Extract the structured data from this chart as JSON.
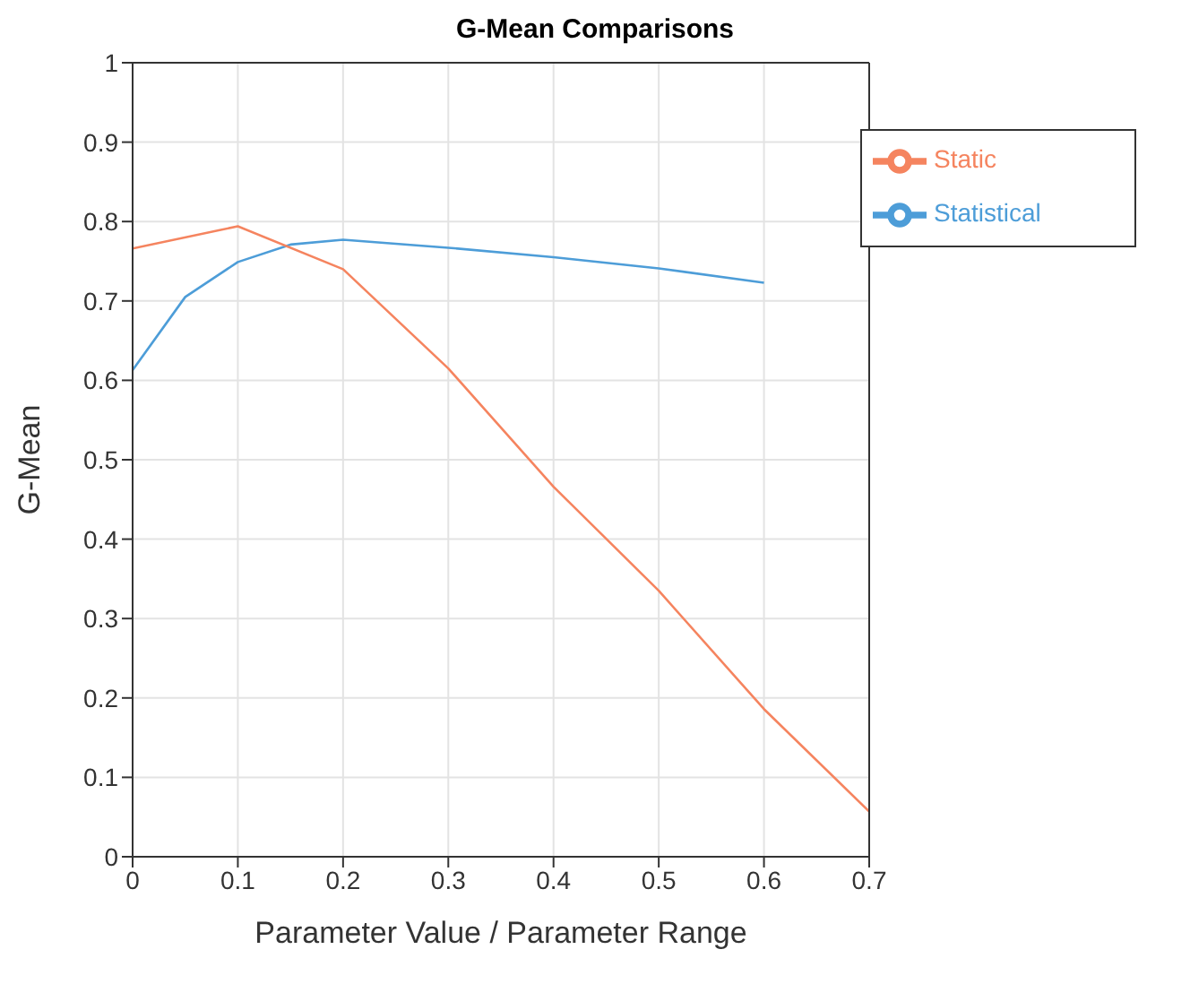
{
  "chart_data": {
    "type": "line",
    "title": "G-Mean Comparisons",
    "xlabel": "Parameter Value / Parameter Range",
    "ylabel": "G-Mean",
    "xlim": [
      0,
      0.7
    ],
    "xticks": [
      0,
      0.1,
      0.2,
      0.3,
      0.4,
      0.5,
      0.6,
      0.7
    ],
    "ylim": [
      0,
      1
    ],
    "yticks": [
      0,
      0.1,
      0.2,
      0.3,
      0.4,
      0.5,
      0.6,
      0.7,
      0.8,
      0.9,
      1
    ],
    "grid": true,
    "legend": "top right",
    "marker": "none",
    "line_style": "solid",
    "series": [
      {
        "name": "Statistical",
        "color": "#4d9dd8",
        "x": [
          0,
          0.05,
          0.1,
          0.15,
          0.2,
          0.3,
          0.4,
          0.5,
          0.6
        ],
        "values": [
          0.613,
          0.705,
          0.749,
          0.771,
          0.777,
          0.767,
          0.755,
          0.741,
          0.723
        ]
      },
      {
        "name": "Static",
        "color": "#f5845f",
        "x": [
          0,
          0.1,
          0.2,
          0.3,
          0.4,
          0.5,
          0.6,
          0.7
        ],
        "values": [
          0.766,
          0.794,
          0.74,
          0.615,
          0.466,
          0.335,
          0.186,
          0.057
        ]
      }
    ]
  }
}
